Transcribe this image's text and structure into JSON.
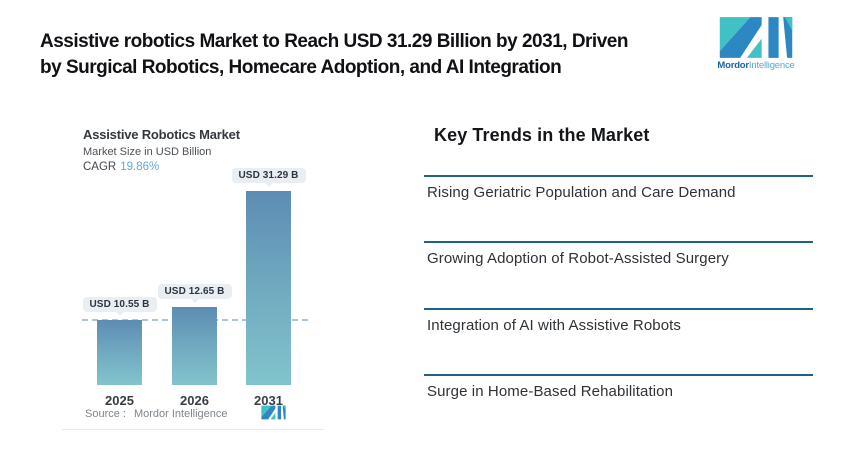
{
  "header": {
    "title_line1": "Assistive robotics Market to Reach USD 31.29 Billion by 2031, Driven",
    "title_line2": "by Surgical Robotics, Homecare Adoption, and AI Integration",
    "logo": {
      "brand_bold": "Mordor",
      "brand_light": "Intelligence",
      "teal": "#41c1c5",
      "blue": "#2d87c3"
    }
  },
  "chart_card": {
    "title": "Assistive Robotics Market",
    "subtitle": "Market Size in USD Billion",
    "cagr_label": "CAGR",
    "cagr_value": "19.86%",
    "cagr_value_color": "#60a9d9",
    "source_prefix": "Source :",
    "source_value": "Mordor Intelligence"
  },
  "chart_data": {
    "type": "bar",
    "title": "Assistive Robotics Market",
    "ylabel": "Market Size in USD Billion",
    "unit": "USD Billion",
    "cagr_percent": 19.86,
    "categories": [
      "2025",
      "2026",
      "2031"
    ],
    "values": [
      10.55,
      12.65,
      31.29
    ],
    "bar_labels": [
      "USD 10.55 B",
      "USD 12.65 B",
      "USD 31.29 B"
    ],
    "baseline_dashed_at": 10.55,
    "ylim": [
      0,
      31.29
    ],
    "grid": false,
    "legend": "none",
    "bar_gradient_top": "#5d8cb3",
    "bar_gradient_bottom": "#82c4cc",
    "dashed_line_color": "#a9c6d6",
    "label_box_bg": "#e9eef2"
  },
  "trends": {
    "heading": "Key Trends in the Market",
    "rule_color": "#1e6088",
    "items": [
      "Rising Geriatric Population and Care Demand",
      "Growing Adoption of Robot-Assisted Surgery",
      "Integration of AI with Assistive Robots",
      "Surge in Home-Based Rehabilitation"
    ]
  }
}
